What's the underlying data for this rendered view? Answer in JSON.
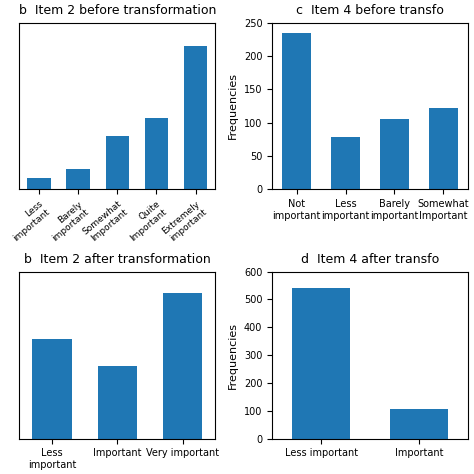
{
  "chart_data": [
    {
      "type": "bar",
      "title": "b  Item 2 before transformation",
      "categories": [
        "Less\nimportant",
        "Barely\nimportant",
        "Somewhat\nImportant",
        "Quite\nImportant",
        "Extremely\nimportant"
      ],
      "values": [
        20,
        35,
        90,
        120,
        240
      ],
      "ylim": [
        0,
        280
      ],
      "yticks": [],
      "tick_labels": "x"
    },
    {
      "type": "bar",
      "title": "c  Item 4 before transfo",
      "categories": [
        "Not\nimportant",
        "Less\nimportant",
        "Barely\nimportant",
        "Somewhat\nImportant"
      ],
      "values": [
        235,
        78,
        105,
        122
      ],
      "ylabel": "Frequencies",
      "ylim": [
        0,
        250
      ],
      "yticks": [
        0,
        50,
        100,
        150,
        200,
        250
      ]
    },
    {
      "type": "bar",
      "title": "b  Item 2 after transformation",
      "categories": [
        "Less\nimportant",
        "Important",
        "Very important"
      ],
      "values": [
        370,
        270,
        540
      ],
      "ylim": [
        0,
        620
      ],
      "yticks": [],
      "tick_labels": "x"
    },
    {
      "type": "bar",
      "title": "d  Item 4 after transfo",
      "categories": [
        "Less important",
        "Important"
      ],
      "values": [
        540,
        105
      ],
      "ylabel": "Frequencies",
      "ylim": [
        0,
        600
      ],
      "yticks": [
        0,
        100,
        200,
        300,
        400,
        500,
        600
      ]
    }
  ]
}
